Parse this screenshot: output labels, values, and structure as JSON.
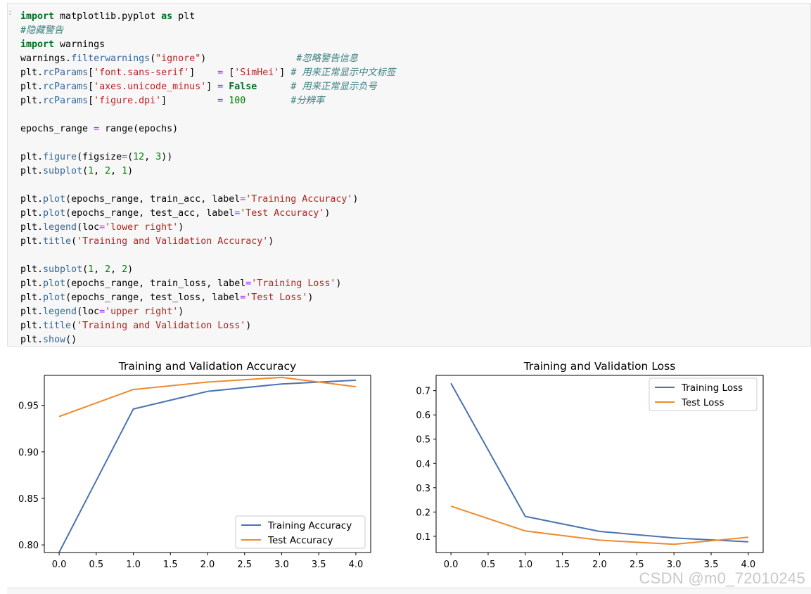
{
  "code_cell": {
    "prompt": ":",
    "lines": [
      [
        [
          "import",
          "kw"
        ],
        [
          " matplotlib.pyplot ",
          "pl"
        ],
        [
          "as",
          "kw"
        ],
        [
          " plt",
          "pl"
        ]
      ],
      [
        [
          "#隐藏警告",
          "cm"
        ]
      ],
      [
        [
          "import",
          "kw"
        ],
        [
          " warnings",
          "pl"
        ]
      ],
      [
        [
          "warnings.",
          "pl"
        ],
        [
          "filterwarnings",
          "fn"
        ],
        [
          "(",
          "pl"
        ],
        [
          "\"ignore\"",
          "str"
        ],
        [
          ")",
          "pl"
        ],
        [
          "                ",
          "pl"
        ],
        [
          "#忽略警告信息",
          "cm"
        ]
      ],
      [
        [
          "plt.",
          "pl"
        ],
        [
          "rcParams",
          "fn"
        ],
        [
          "[",
          "pl"
        ],
        [
          "'font.sans-serif'",
          "str"
        ],
        [
          "]    ",
          "pl"
        ],
        [
          "=",
          "op"
        ],
        [
          " [",
          "pl"
        ],
        [
          "'SimHei'",
          "str"
        ],
        [
          "] ",
          "pl"
        ],
        [
          "# 用来正常显示中文标签",
          "cm"
        ]
      ],
      [
        [
          "plt.",
          "pl"
        ],
        [
          "rcParams",
          "fn"
        ],
        [
          "[",
          "pl"
        ],
        [
          "'axes.unicode_minus'",
          "str"
        ],
        [
          "] ",
          "pl"
        ],
        [
          "=",
          "op"
        ],
        [
          " ",
          "pl"
        ],
        [
          "False",
          "kw"
        ],
        [
          "      ",
          "pl"
        ],
        [
          "# 用来正常显示负号",
          "cm"
        ]
      ],
      [
        [
          "plt.",
          "pl"
        ],
        [
          "rcParams",
          "fn"
        ],
        [
          "[",
          "pl"
        ],
        [
          "'figure.dpi'",
          "str"
        ],
        [
          "]         ",
          "pl"
        ],
        [
          "=",
          "op"
        ],
        [
          " ",
          "pl"
        ],
        [
          "100",
          "num"
        ],
        [
          "        ",
          "pl"
        ],
        [
          "#分辨率",
          "cm"
        ]
      ],
      [],
      [
        [
          "epochs_range ",
          "pl"
        ],
        [
          "=",
          "op"
        ],
        [
          " range(epochs)",
          "pl"
        ]
      ],
      [],
      [
        [
          "plt.",
          "pl"
        ],
        [
          "figure",
          "fn"
        ],
        [
          "(figsize",
          "pl"
        ],
        [
          "=",
          "op"
        ],
        [
          "(",
          "pl"
        ],
        [
          "12",
          "num"
        ],
        [
          ", ",
          "pl"
        ],
        [
          "3",
          "num"
        ],
        [
          "))",
          "pl"
        ]
      ],
      [
        [
          "plt.",
          "pl"
        ],
        [
          "subplot",
          "fn"
        ],
        [
          "(",
          "pl"
        ],
        [
          "1",
          "num"
        ],
        [
          ", ",
          "pl"
        ],
        [
          "2",
          "num"
        ],
        [
          ", ",
          "pl"
        ],
        [
          "1",
          "num"
        ],
        [
          ")",
          "pl"
        ]
      ],
      [],
      [
        [
          "plt.",
          "pl"
        ],
        [
          "plot",
          "fn"
        ],
        [
          "(epochs_range, train_acc, label",
          "pl"
        ],
        [
          "=",
          "op"
        ],
        [
          "'Training Accuracy'",
          "str"
        ],
        [
          ")",
          "pl"
        ]
      ],
      [
        [
          "plt.",
          "pl"
        ],
        [
          "plot",
          "fn"
        ],
        [
          "(epochs_range, test_acc, label",
          "pl"
        ],
        [
          "=",
          "op"
        ],
        [
          "'Test Accuracy'",
          "str"
        ],
        [
          ")",
          "pl"
        ]
      ],
      [
        [
          "plt.",
          "pl"
        ],
        [
          "legend",
          "fn"
        ],
        [
          "(loc",
          "pl"
        ],
        [
          "=",
          "op"
        ],
        [
          "'lower right'",
          "str"
        ],
        [
          ")",
          "pl"
        ]
      ],
      [
        [
          "plt.",
          "pl"
        ],
        [
          "title",
          "fn"
        ],
        [
          "(",
          "pl"
        ],
        [
          "'Training and Validation Accuracy'",
          "str"
        ],
        [
          ")",
          "pl"
        ]
      ],
      [],
      [
        [
          "plt.",
          "pl"
        ],
        [
          "subplot",
          "fn"
        ],
        [
          "(",
          "pl"
        ],
        [
          "1",
          "num"
        ],
        [
          ", ",
          "pl"
        ],
        [
          "2",
          "num"
        ],
        [
          ", ",
          "pl"
        ],
        [
          "2",
          "num"
        ],
        [
          ")",
          "pl"
        ]
      ],
      [
        [
          "plt.",
          "pl"
        ],
        [
          "plot",
          "fn"
        ],
        [
          "(epochs_range, train_loss, label",
          "pl"
        ],
        [
          "=",
          "op"
        ],
        [
          "'Training Loss'",
          "str"
        ],
        [
          ")",
          "pl"
        ]
      ],
      [
        [
          "plt.",
          "pl"
        ],
        [
          "plot",
          "fn"
        ],
        [
          "(epochs_range, test_loss, label",
          "pl"
        ],
        [
          "=",
          "op"
        ],
        [
          "'Test Loss'",
          "str"
        ],
        [
          ")",
          "pl"
        ]
      ],
      [
        [
          "plt.",
          "pl"
        ],
        [
          "legend",
          "fn"
        ],
        [
          "(loc",
          "pl"
        ],
        [
          "=",
          "op"
        ],
        [
          "'upper right'",
          "str"
        ],
        [
          ")",
          "pl"
        ]
      ],
      [
        [
          "plt.",
          "pl"
        ],
        [
          "title",
          "fn"
        ],
        [
          "(",
          "pl"
        ],
        [
          "'Training and Validation Loss'",
          "str"
        ],
        [
          ")",
          "pl"
        ]
      ],
      [
        [
          "plt.",
          "pl"
        ],
        [
          "show",
          "fn"
        ],
        [
          "()",
          "pl"
        ]
      ]
    ]
  },
  "colors": {
    "series_blue": "#4c72b0",
    "series_orange": "#ed8b2d",
    "cell_bg": "#f7f7f7"
  },
  "chart_data": [
    {
      "type": "line",
      "title": "Training and Validation Accuracy",
      "x": [
        0,
        1,
        2,
        3,
        4
      ],
      "xticks": [
        "0.0",
        "0.5",
        "1.0",
        "1.5",
        "2.0",
        "2.5",
        "3.0",
        "3.5",
        "4.0"
      ],
      "yticks": [
        "0.80",
        "0.85",
        "0.90",
        "0.95"
      ],
      "xlim": [
        -0.2,
        4.2
      ],
      "ylim": [
        0.7918,
        0.9822
      ],
      "legend_loc": "lower right",
      "series": [
        {
          "name": "Training Accuracy",
          "color": "#4c72b0",
          "values": [
            0.792,
            0.946,
            0.965,
            0.973,
            0.977
          ]
        },
        {
          "name": "Test Accuracy",
          "color": "#ed8b2d",
          "values": [
            0.938,
            0.967,
            0.975,
            0.98,
            0.97
          ]
        }
      ]
    },
    {
      "type": "line",
      "title": "Training and Validation Loss",
      "x": [
        0,
        1,
        2,
        3,
        4
      ],
      "xticks": [
        "0.0",
        "0.5",
        "1.0",
        "1.5",
        "2.0",
        "2.5",
        "3.0",
        "3.5",
        "4.0"
      ],
      "yticks": [
        "0.1",
        "0.2",
        "0.3",
        "0.4",
        "0.5",
        "0.6",
        "0.7"
      ],
      "xlim": [
        -0.2,
        4.2
      ],
      "ylim": [
        0.0331,
        0.7627
      ],
      "legend_loc": "upper right",
      "series": [
        {
          "name": "Training Loss",
          "color": "#4c72b0",
          "values": [
            0.73,
            0.182,
            0.12,
            0.093,
            0.077
          ]
        },
        {
          "name": "Test Loss",
          "color": "#ed8b2d",
          "values": [
            0.224,
            0.122,
            0.084,
            0.067,
            0.096
          ]
        }
      ]
    }
  ],
  "watermark": "CSDN @m0_72010245"
}
